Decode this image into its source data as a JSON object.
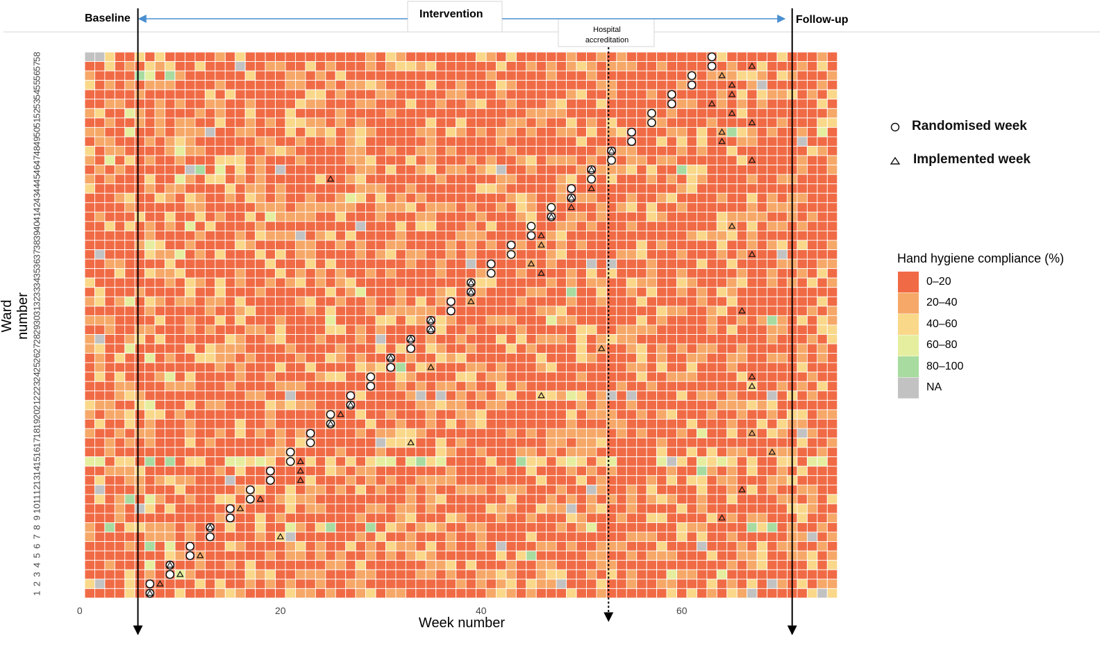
{
  "chart_data": {
    "type": "heatmap",
    "xlabel": "Week number",
    "ylabel": "Ward number",
    "x_ticks": [
      0,
      20,
      40,
      60
    ],
    "xlim": [
      0,
      75
    ],
    "wards": 58,
    "weeks": 75,
    "phases": {
      "baseline": "Baseline",
      "intervention": "Intervention",
      "follow_up": "Follow-up",
      "intervention_start_week": 5.3,
      "intervention_end_week": 70.5
    },
    "event": {
      "label_line1": "Hospital",
      "label_line2": "accreditation",
      "week": 52.2
    },
    "legend": {
      "title": "Hand hygiene compliance (%)",
      "bins": [
        {
          "label": "0–20",
          "color": "#F06B45"
        },
        {
          "label": "20–40",
          "color": "#F6A868"
        },
        {
          "label": "40–60",
          "color": "#FAD88A"
        },
        {
          "label": "60–80",
          "color": "#E5EE9E"
        },
        {
          "label": "80–100",
          "color": "#A8DBA0"
        },
        {
          "label": "NA",
          "color": "#C2C2C2"
        }
      ]
    },
    "markers": {
      "randomised_label": "Randomised week",
      "implemented_label": "Implemented week"
    },
    "randomised_week": [
      {
        "ward": 1,
        "week": 6
      },
      {
        "ward": 2,
        "week": 6
      },
      {
        "ward": 3,
        "week": 8
      },
      {
        "ward": 4,
        "week": 8
      },
      {
        "ward": 5,
        "week": 10
      },
      {
        "ward": 6,
        "week": 10
      },
      {
        "ward": 7,
        "week": 12
      },
      {
        "ward": 8,
        "week": 12
      },
      {
        "ward": 9,
        "week": 14
      },
      {
        "ward": 10,
        "week": 14
      },
      {
        "ward": 11,
        "week": 16
      },
      {
        "ward": 12,
        "week": 16
      },
      {
        "ward": 13,
        "week": 18
      },
      {
        "ward": 14,
        "week": 18
      },
      {
        "ward": 15,
        "week": 20
      },
      {
        "ward": 16,
        "week": 20
      },
      {
        "ward": 17,
        "week": 22
      },
      {
        "ward": 18,
        "week": 22
      },
      {
        "ward": 19,
        "week": 24
      },
      {
        "ward": 20,
        "week": 24
      },
      {
        "ward": 21,
        "week": 26
      },
      {
        "ward": 22,
        "week": 26
      },
      {
        "ward": 23,
        "week": 28
      },
      {
        "ward": 24,
        "week": 28
      },
      {
        "ward": 25,
        "week": 30
      },
      {
        "ward": 26,
        "week": 30
      },
      {
        "ward": 27,
        "week": 32
      },
      {
        "ward": 28,
        "week": 32
      },
      {
        "ward": 29,
        "week": 34
      },
      {
        "ward": 30,
        "week": 34
      },
      {
        "ward": 31,
        "week": 36
      },
      {
        "ward": 32,
        "week": 36
      },
      {
        "ward": 33,
        "week": 38
      },
      {
        "ward": 34,
        "week": 38
      },
      {
        "ward": 35,
        "week": 40
      },
      {
        "ward": 36,
        "week": 40
      },
      {
        "ward": 37,
        "week": 42
      },
      {
        "ward": 38,
        "week": 42
      },
      {
        "ward": 39,
        "week": 44
      },
      {
        "ward": 40,
        "week": 44
      },
      {
        "ward": 41,
        "week": 46
      },
      {
        "ward": 42,
        "week": 46
      },
      {
        "ward": 43,
        "week": 48
      },
      {
        "ward": 44,
        "week": 48
      },
      {
        "ward": 45,
        "week": 50
      },
      {
        "ward": 46,
        "week": 50
      },
      {
        "ward": 47,
        "week": 52
      },
      {
        "ward": 48,
        "week": 52
      },
      {
        "ward": 49,
        "week": 54
      },
      {
        "ward": 50,
        "week": 54
      },
      {
        "ward": 51,
        "week": 56
      },
      {
        "ward": 52,
        "week": 56
      },
      {
        "ward": 53,
        "week": 58
      },
      {
        "ward": 54,
        "week": 58
      },
      {
        "ward": 55,
        "week": 60
      },
      {
        "ward": 56,
        "week": 60
      },
      {
        "ward": 57,
        "week": 62
      },
      {
        "ward": 58,
        "week": 62
      }
    ],
    "implemented_week": [
      {
        "ward": 1,
        "week": 6
      },
      {
        "ward": 2,
        "week": 7
      },
      {
        "ward": 3,
        "week": 9
      },
      {
        "ward": 4,
        "week": 8
      },
      {
        "ward": 5,
        "week": 11
      },
      {
        "ward": 7,
        "week": 19
      },
      {
        "ward": 8,
        "week": 12
      },
      {
        "ward": 9,
        "week": 63
      },
      {
        "ward": 10,
        "week": 15
      },
      {
        "ward": 11,
        "week": 17
      },
      {
        "ward": 12,
        "week": 65
      },
      {
        "ward": 13,
        "week": 21
      },
      {
        "ward": 14,
        "week": 21
      },
      {
        "ward": 15,
        "week": 21
      },
      {
        "ward": 16,
        "week": 68
      },
      {
        "ward": 17,
        "week": 32
      },
      {
        "ward": 18,
        "week": 66
      },
      {
        "ward": 19,
        "week": 24
      },
      {
        "ward": 20,
        "week": 25
      },
      {
        "ward": 21,
        "week": 26
      },
      {
        "ward": 22,
        "week": 45
      },
      {
        "ward": 23,
        "week": 66
      },
      {
        "ward": 24,
        "week": 66
      },
      {
        "ward": 25,
        "week": 34
      },
      {
        "ward": 26,
        "week": 30
      },
      {
        "ward": 27,
        "week": 51
      },
      {
        "ward": 28,
        "week": 32
      },
      {
        "ward": 29,
        "week": 34
      },
      {
        "ward": 30,
        "week": 34
      },
      {
        "ward": 31,
        "week": 65
      },
      {
        "ward": 32,
        "week": 38
      },
      {
        "ward": 33,
        "week": 38
      },
      {
        "ward": 34,
        "week": 38
      },
      {
        "ward": 35,
        "week": 45
      },
      {
        "ward": 36,
        "week": 44
      },
      {
        "ward": 37,
        "week": 66
      },
      {
        "ward": 38,
        "week": 45
      },
      {
        "ward": 39,
        "week": 45
      },
      {
        "ward": 40,
        "week": 64
      },
      {
        "ward": 41,
        "week": 46
      },
      {
        "ward": 42,
        "week": 48
      },
      {
        "ward": 43,
        "week": 48
      },
      {
        "ward": 44,
        "week": 50
      },
      {
        "ward": 45,
        "week": 24
      },
      {
        "ward": 46,
        "week": 50
      },
      {
        "ward": 47,
        "week": 66
      },
      {
        "ward": 48,
        "week": 52
      },
      {
        "ward": 49,
        "week": 63
      },
      {
        "ward": 50,
        "week": 63
      },
      {
        "ward": 51,
        "week": 66
      },
      {
        "ward": 52,
        "week": 64
      },
      {
        "ward": 53,
        "week": 62
      },
      {
        "ward": 54,
        "week": 64
      },
      {
        "ward": 55,
        "week": 64
      },
      {
        "ward": 56,
        "week": 63
      },
      {
        "ward": 57,
        "week": 66
      }
    ],
    "special_cells": {
      "na": [
        [
          58,
          0
        ],
        [
          58,
          1
        ],
        [
          57,
          15
        ],
        [
          50,
          12
        ],
        [
          46,
          10
        ],
        [
          46,
          19
        ],
        [
          46,
          41
        ],
        [
          39,
          21
        ],
        [
          40,
          27
        ],
        [
          37,
          1
        ],
        [
          37,
          69
        ],
        [
          36,
          38
        ],
        [
          36,
          50
        ],
        [
          36,
          52
        ],
        [
          28,
          1
        ],
        [
          28,
          29
        ],
        [
          22,
          20
        ],
        [
          22,
          33
        ],
        [
          22,
          35
        ],
        [
          22,
          52
        ],
        [
          22,
          54
        ],
        [
          22,
          68
        ],
        [
          18,
          71
        ],
        [
          17,
          29
        ],
        [
          15,
          58
        ],
        [
          13,
          14
        ],
        [
          12,
          1
        ],
        [
          12,
          50
        ],
        [
          10,
          5
        ],
        [
          10,
          48
        ],
        [
          7,
          20
        ],
        [
          7,
          72
        ],
        [
          6,
          41
        ],
        [
          6,
          61
        ],
        [
          2,
          1
        ],
        [
          2,
          47
        ],
        [
          2,
          68
        ],
        [
          1,
          66
        ],
        [
          1,
          73
        ],
        [
          55,
          67
        ],
        [
          49,
          71
        ]
      ],
      "g80": [
        [
          56,
          5
        ],
        [
          56,
          8
        ],
        [
          46,
          11
        ],
        [
          46,
          59
        ],
        [
          50,
          64
        ],
        [
          33,
          48
        ],
        [
          30,
          68
        ],
        [
          25,
          31
        ],
        [
          15,
          6
        ],
        [
          15,
          8
        ],
        [
          15,
          33
        ],
        [
          15,
          43
        ],
        [
          11,
          4
        ],
        [
          8,
          2
        ],
        [
          8,
          24
        ],
        [
          8,
          28
        ],
        [
          8,
          66
        ],
        [
          8,
          68
        ],
        [
          6,
          6
        ],
        [
          5,
          44
        ],
        [
          14,
          61
        ]
      ],
      "g60": [
        [
          56,
          6
        ],
        [
          52,
          4
        ],
        [
          47,
          2
        ],
        [
          48,
          9
        ],
        [
          46,
          13
        ],
        [
          45,
          9
        ],
        [
          41,
          18
        ],
        [
          40,
          10
        ],
        [
          38,
          6
        ],
        [
          37,
          9
        ],
        [
          33,
          27
        ],
        [
          32,
          4
        ],
        [
          30,
          24
        ],
        [
          26,
          6
        ],
        [
          24,
          8
        ],
        [
          22,
          48
        ],
        [
          21,
          6
        ],
        [
          18,
          61
        ],
        [
          15,
          0
        ],
        [
          15,
          14
        ],
        [
          15,
          29
        ],
        [
          15,
          30
        ],
        [
          15,
          63
        ],
        [
          11,
          6
        ],
        [
          6,
          8
        ],
        [
          4,
          6
        ],
        [
          3,
          9
        ],
        [
          3,
          58
        ],
        [
          3,
          63
        ],
        [
          8,
          20
        ],
        [
          8,
          50
        ],
        [
          27,
          4
        ],
        [
          43,
          26
        ],
        [
          50,
          4
        ],
        [
          30,
          46
        ],
        [
          50,
          73
        ]
      ]
    }
  }
}
